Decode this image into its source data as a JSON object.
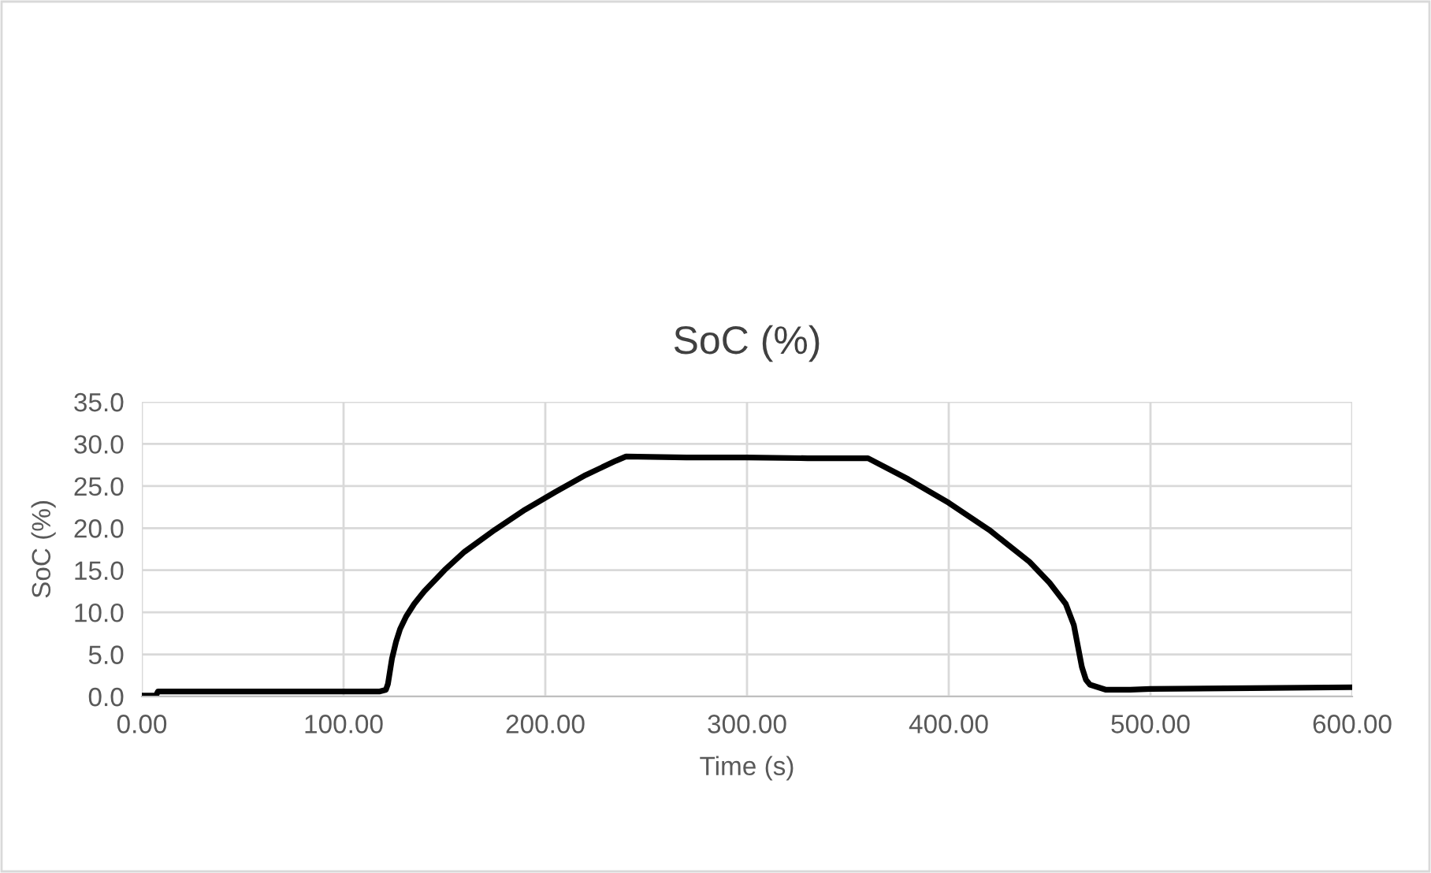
{
  "chart_data": {
    "type": "line",
    "title": "SoC (%)",
    "xlabel": "Time (s)",
    "ylabel": "SoC (%)",
    "series": [
      {
        "color": "#000000",
        "x": [
          0,
          7,
          8,
          20,
          60,
          100,
          118,
          121,
          122,
          123,
          124,
          126,
          128,
          131,
          135,
          140,
          150,
          160,
          175,
          190,
          205,
          220,
          235,
          240,
          270,
          300,
          330,
          360,
          380,
          400,
          420,
          440,
          450,
          458,
          462,
          464,
          466,
          468,
          470,
          474,
          478,
          490,
          500,
          550,
          600
        ],
        "values": [
          0.1,
          0.1,
          0.6,
          0.6,
          0.6,
          0.6,
          0.6,
          0.8,
          1.5,
          3.0,
          4.5,
          6.5,
          8.0,
          9.5,
          11.0,
          12.5,
          15.0,
          17.2,
          19.8,
          22.2,
          24.3,
          26.3,
          28.0,
          28.5,
          28.4,
          28.4,
          28.3,
          28.3,
          25.8,
          23.0,
          19.8,
          16.0,
          13.5,
          11.0,
          8.5,
          6.0,
          3.5,
          2.0,
          1.4,
          1.1,
          0.8,
          0.8,
          0.9,
          1.0,
          1.1
        ]
      }
    ],
    "xlim": [
      0,
      600
    ],
    "xticks": [
      {
        "value": 0,
        "label": "0.00"
      },
      {
        "value": 100,
        "label": "100.00"
      },
      {
        "value": 200,
        "label": "200.00"
      },
      {
        "value": 300,
        "label": "300.00"
      },
      {
        "value": 400,
        "label": "400.00"
      },
      {
        "value": 500,
        "label": "500.00"
      },
      {
        "value": 600,
        "label": "600.00"
      }
    ],
    "ylim": [
      0,
      35
    ],
    "yticks": [
      {
        "value": 0,
        "label": "0.0"
      },
      {
        "value": 5,
        "label": "5.0"
      },
      {
        "value": 10,
        "label": "10.0"
      },
      {
        "value": 15,
        "label": "15.0"
      },
      {
        "value": 20,
        "label": "20.0"
      },
      {
        "value": 25,
        "label": "25.0"
      },
      {
        "value": 30,
        "label": "30.0"
      },
      {
        "value": 35,
        "label": "35.0"
      }
    ],
    "grid": true,
    "marker": "none",
    "line_style": "solid"
  }
}
